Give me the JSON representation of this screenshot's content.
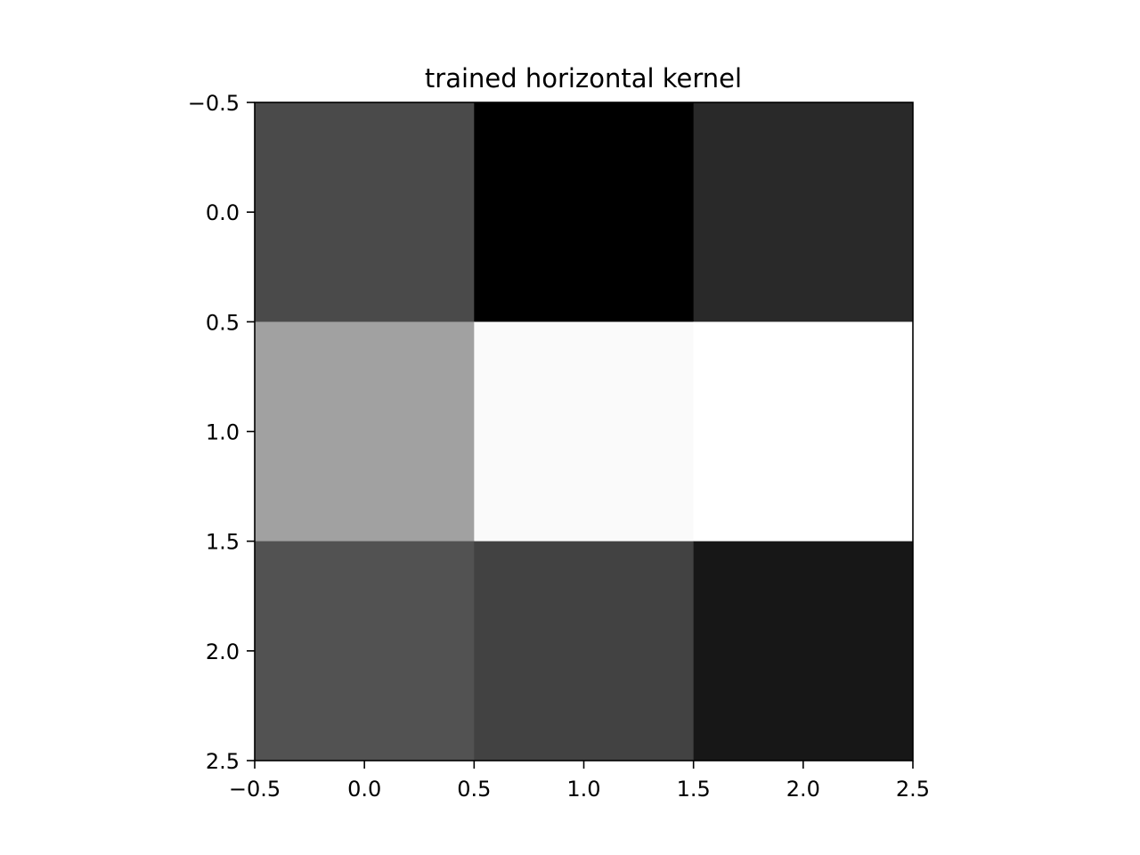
{
  "chart_data": {
    "type": "heatmap",
    "title": "trained horizontal kernel",
    "xlabel": "",
    "ylabel": "",
    "colormap": "gray",
    "rows": 3,
    "cols": 3,
    "values": [
      [
        0.29,
        0.0,
        0.16
      ],
      [
        0.63,
        0.98,
        1.0
      ],
      [
        0.32,
        0.26,
        0.09
      ]
    ],
    "xlim": [
      -0.5,
      2.5
    ],
    "ylim": [
      2.5,
      -0.5
    ],
    "xticks": [
      "−0.5",
      "0.0",
      "0.5",
      "1.0",
      "1.5",
      "2.0",
      "2.5"
    ],
    "yticks": [
      "−0.5",
      "0.0",
      "0.5",
      "1.0",
      "1.5",
      "2.0",
      "2.5"
    ],
    "grid": false,
    "legend": "none"
  }
}
